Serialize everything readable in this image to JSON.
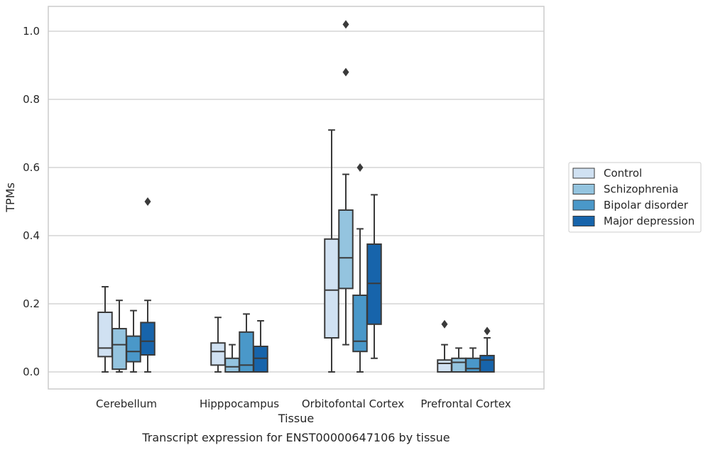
{
  "caption": "Transcript expression for ENST00000647106 by tissue",
  "colors": {
    "Control": "#d0e1f2",
    "Schizophrenia": "#94c4df",
    "Bipolar disorder": "#4a98c9",
    "Major depression": "#1764ab",
    "grid": "#cccccc",
    "stroke": "#3a3a3a"
  },
  "chart_data": {
    "type": "box",
    "title": "",
    "xlabel": "Tissue",
    "ylabel": "TPMs",
    "ylim": [
      -0.05,
      1.07
    ],
    "yticks": [
      0.0,
      0.2,
      0.4,
      0.6,
      0.8,
      1.0
    ],
    "ytick_labels": [
      "0.0",
      "0.2",
      "0.4",
      "0.6",
      "0.8",
      "1.0"
    ],
    "grid": "horizontal",
    "legend_position": "right",
    "categories": [
      "Cerebellum",
      "Hipppocampus",
      "Orbitofontal Cortex",
      "Prefrontal Cortex"
    ],
    "series": [
      {
        "name": "Control",
        "boxes": [
          {
            "whislo": 0.0,
            "q1": 0.045,
            "med": 0.07,
            "q3": 0.175,
            "whishi": 0.25,
            "fliers": []
          },
          {
            "whislo": 0.0,
            "q1": 0.02,
            "med": 0.06,
            "q3": 0.085,
            "whishi": 0.16,
            "fliers": []
          },
          {
            "whislo": 0.0,
            "q1": 0.1,
            "med": 0.24,
            "q3": 0.39,
            "whishi": 0.71,
            "fliers": []
          },
          {
            "whislo": 0.0,
            "q1": 0.0,
            "med": 0.025,
            "q3": 0.035,
            "whishi": 0.08,
            "fliers": [
              0.14
            ]
          }
        ]
      },
      {
        "name": "Schizophrenia",
        "boxes": [
          {
            "whislo": 0.0,
            "q1": 0.008,
            "med": 0.08,
            "q3": 0.127,
            "whishi": 0.21,
            "fliers": []
          },
          {
            "whislo": 0.0,
            "q1": 0.0,
            "med": 0.015,
            "q3": 0.04,
            "whishi": 0.08,
            "fliers": []
          },
          {
            "whislo": 0.08,
            "q1": 0.245,
            "med": 0.335,
            "q3": 0.475,
            "whishi": 0.58,
            "fliers": [
              0.88,
              1.02
            ]
          },
          {
            "whislo": 0.0,
            "q1": 0.0,
            "med": 0.028,
            "q3": 0.04,
            "whishi": 0.07,
            "fliers": []
          }
        ]
      },
      {
        "name": "Bipolar disorder",
        "boxes": [
          {
            "whislo": 0.0,
            "q1": 0.03,
            "med": 0.06,
            "q3": 0.105,
            "whishi": 0.18,
            "fliers": []
          },
          {
            "whislo": 0.0,
            "q1": 0.0,
            "med": 0.02,
            "q3": 0.117,
            "whishi": 0.17,
            "fliers": []
          },
          {
            "whislo": 0.0,
            "q1": 0.06,
            "med": 0.09,
            "q3": 0.225,
            "whishi": 0.42,
            "fliers": [
              0.6
            ]
          },
          {
            "whislo": 0.0,
            "q1": 0.0,
            "med": 0.01,
            "q3": 0.04,
            "whishi": 0.07,
            "fliers": []
          }
        ]
      },
      {
        "name": "Major depression",
        "boxes": [
          {
            "whislo": 0.0,
            "q1": 0.05,
            "med": 0.09,
            "q3": 0.145,
            "whishi": 0.21,
            "fliers": [
              0.5
            ]
          },
          {
            "whislo": 0.0,
            "q1": 0.0,
            "med": 0.04,
            "q3": 0.075,
            "whishi": 0.15,
            "fliers": []
          },
          {
            "whislo": 0.04,
            "q1": 0.14,
            "med": 0.26,
            "q3": 0.375,
            "whishi": 0.52,
            "fliers": []
          },
          {
            "whislo": 0.0,
            "q1": 0.0,
            "med": 0.035,
            "q3": 0.048,
            "whishi": 0.1,
            "fliers": [
              0.12
            ]
          }
        ]
      }
    ]
  }
}
